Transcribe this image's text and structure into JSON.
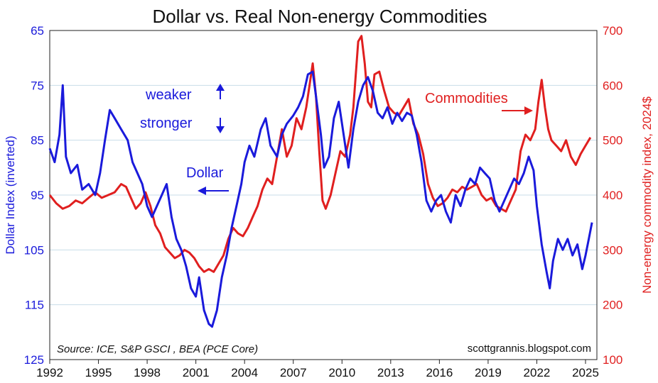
{
  "chart_data": {
    "type": "line",
    "title": "Dollar vs. Real Non-energy Commodities",
    "y_left_label": "Dollar Index (inverted)",
    "y_right_label": "Non-energy commodity index, 2024$",
    "x_range": [
      1992,
      2025.7
    ],
    "x_ticks": [
      "1992",
      "1995",
      "1998",
      "2001",
      "2004",
      "2007",
      "2010",
      "2013",
      "2016",
      "2019",
      "2022",
      "2025"
    ],
    "y_left_range": [
      65,
      125
    ],
    "y_left_inverted": true,
    "y_left_ticks": [
      "65",
      "75",
      "85",
      "95",
      "105",
      "115",
      "125"
    ],
    "y_right_range": [
      100,
      700
    ],
    "y_right_ticks": [
      "700",
      "600",
      "500",
      "400",
      "300",
      "200",
      "100"
    ],
    "grid": "horizontal",
    "annotations": {
      "weaker": "weaker",
      "stronger": "stronger",
      "dollar": "Dollar",
      "commodities": "Commodities"
    },
    "source": "Source: ICE, S&P GSCI , BEA (PCE Core)",
    "credit": "scottgrannis.blogspot.com",
    "colors": {
      "dollar": "#1a1adb",
      "commodities": "#e01f1f",
      "grid": "#c8dde8"
    },
    "series": [
      {
        "name": "Dollar",
        "axis": "left",
        "x": [
          1992.0,
          1992.3,
          1992.6,
          1992.8,
          1993.0,
          1993.3,
          1993.7,
          1994.0,
          1994.4,
          1994.8,
          1995.1,
          1995.4,
          1995.7,
          1996.0,
          1996.4,
          1996.8,
          1997.1,
          1997.4,
          1997.7,
          1998.0,
          1998.3,
          1998.6,
          1998.9,
          1999.2,
          1999.5,
          1999.8,
          2000.1,
          2000.4,
          2000.7,
          2001.0,
          2001.2,
          2001.5,
          2001.8,
          2002.0,
          2002.3,
          2002.6,
          2002.9,
          2003.2,
          2003.5,
          2003.8,
          2004.0,
          2004.3,
          2004.6,
          2005.0,
          2005.3,
          2005.6,
          2006.0,
          2006.3,
          2006.6,
          2007.0,
          2007.3,
          2007.6,
          2007.9,
          2008.2,
          2008.4,
          2008.7,
          2008.9,
          2009.2,
          2009.5,
          2009.8,
          2010.1,
          2010.4,
          2010.7,
          2011.0,
          2011.3,
          2011.6,
          2011.9,
          2012.2,
          2012.5,
          2012.8,
          2013.1,
          2013.4,
          2013.7,
          2014.0,
          2014.3,
          2014.6,
          2014.9,
          2015.2,
          2015.5,
          2015.8,
          2016.1,
          2016.4,
          2016.7,
          2017.0,
          2017.3,
          2017.6,
          2017.9,
          2018.2,
          2018.5,
          2018.8,
          2019.1,
          2019.4,
          2019.7,
          2020.0,
          2020.3,
          2020.6,
          2020.9,
          2021.2,
          2021.5,
          2021.8,
          2022.0,
          2022.3,
          2022.6,
          2022.8,
          2023.0,
          2023.3,
          2023.6,
          2023.9,
          2024.2,
          2024.5,
          2024.8,
          2025.0,
          2025.2,
          2025.4
        ],
        "values": [
          86.5,
          89.0,
          84.0,
          75.0,
          88.0,
          91.0,
          89.5,
          94.0,
          93.0,
          95.0,
          91.0,
          85.0,
          79.5,
          81.0,
          83.0,
          85.0,
          89.0,
          91.0,
          93.0,
          97.0,
          99.0,
          97.0,
          95.0,
          93.0,
          99.0,
          103.0,
          105.0,
          108.0,
          112.0,
          113.5,
          110.0,
          116.0,
          118.5,
          119.0,
          116.0,
          110.0,
          106.0,
          101.0,
          97.0,
          93.0,
          89.0,
          86.0,
          88.0,
          83.0,
          81.0,
          86.0,
          88.0,
          84.0,
          82.0,
          80.5,
          79.0,
          77.0,
          73.0,
          72.5,
          77.0,
          84.0,
          90.0,
          88.0,
          81.0,
          78.0,
          84.0,
          90.0,
          83.0,
          78.0,
          75.0,
          73.5,
          76.0,
          80.0,
          81.0,
          79.0,
          82.0,
          80.0,
          81.5,
          80.0,
          80.5,
          84.0,
          89.0,
          96.0,
          98.0,
          96.0,
          95.0,
          98.0,
          100.0,
          95.0,
          97.0,
          94.0,
          92.0,
          93.0,
          90.0,
          91.0,
          92.0,
          96.0,
          98.0,
          96.0,
          94.0,
          92.0,
          93.0,
          91.0,
          88.0,
          90.5,
          97.0,
          104.0,
          109.0,
          112.0,
          107.0,
          103.0,
          105.0,
          103.0,
          106.0,
          104.0,
          108.5,
          106.0,
          103.0,
          100.0
        ]
      },
      {
        "name": "Commodities",
        "axis": "right",
        "x": [
          1992.0,
          1992.4,
          1992.8,
          1993.2,
          1993.6,
          1994.0,
          1994.4,
          1994.8,
          1995.2,
          1995.6,
          1996.0,
          1996.4,
          1996.7,
          1997.0,
          1997.3,
          1997.6,
          1997.9,
          1998.2,
          1998.5,
          1998.8,
          1999.1,
          1999.4,
          1999.7,
          2000.0,
          2000.3,
          2000.6,
          2000.9,
          2001.2,
          2001.5,
          2001.8,
          2002.1,
          2002.4,
          2002.7,
          2003.0,
          2003.3,
          2003.6,
          2003.9,
          2004.2,
          2004.5,
          2004.8,
          2005.1,
          2005.4,
          2005.7,
          2006.0,
          2006.3,
          2006.6,
          2006.9,
          2007.2,
          2007.5,
          2007.8,
          2008.0,
          2008.2,
          2008.4,
          2008.6,
          2008.8,
          2009.0,
          2009.3,
          2009.6,
          2009.9,
          2010.2,
          2010.5,
          2010.7,
          2011.0,
          2011.2,
          2011.4,
          2011.6,
          2011.8,
          2012.0,
          2012.3,
          2012.6,
          2012.9,
          2013.2,
          2013.5,
          2013.8,
          2014.1,
          2014.4,
          2014.7,
          2015.0,
          2015.3,
          2015.6,
          2015.9,
          2016.2,
          2016.5,
          2016.8,
          2017.1,
          2017.4,
          2017.7,
          2018.0,
          2018.3,
          2018.6,
          2018.9,
          2019.2,
          2019.5,
          2019.8,
          2020.1,
          2020.4,
          2020.7,
          2021.0,
          2021.3,
          2021.6,
          2021.9,
          2022.1,
          2022.3,
          2022.5,
          2022.7,
          2022.9,
          2023.2,
          2023.5,
          2023.8,
          2024.1,
          2024.4,
          2024.7,
          2025.0,
          2025.3
        ],
        "values": [
          400,
          385,
          375,
          380,
          390,
          385,
          395,
          405,
          395,
          400,
          405,
          420,
          415,
          395,
          375,
          385,
          405,
          380,
          345,
          330,
          305,
          295,
          285,
          290,
          300,
          295,
          285,
          270,
          260,
          265,
          260,
          275,
          290,
          320,
          340,
          330,
          325,
          340,
          360,
          380,
          410,
          430,
          420,
          470,
          520,
          470,
          490,
          540,
          520,
          560,
          600,
          640,
          580,
          480,
          390,
          375,
          400,
          440,
          480,
          470,
          510,
          560,
          680,
          690,
          640,
          570,
          560,
          620,
          625,
          590,
          560,
          550,
          545,
          560,
          575,
          530,
          510,
          475,
          420,
          395,
          380,
          385,
          395,
          410,
          405,
          415,
          410,
          415,
          420,
          400,
          390,
          395,
          380,
          375,
          370,
          390,
          410,
          480,
          510,
          500,
          520,
          570,
          610,
          560,
          520,
          500,
          490,
          480,
          500,
          470,
          455,
          475,
          490,
          505
        ]
      }
    ]
  }
}
